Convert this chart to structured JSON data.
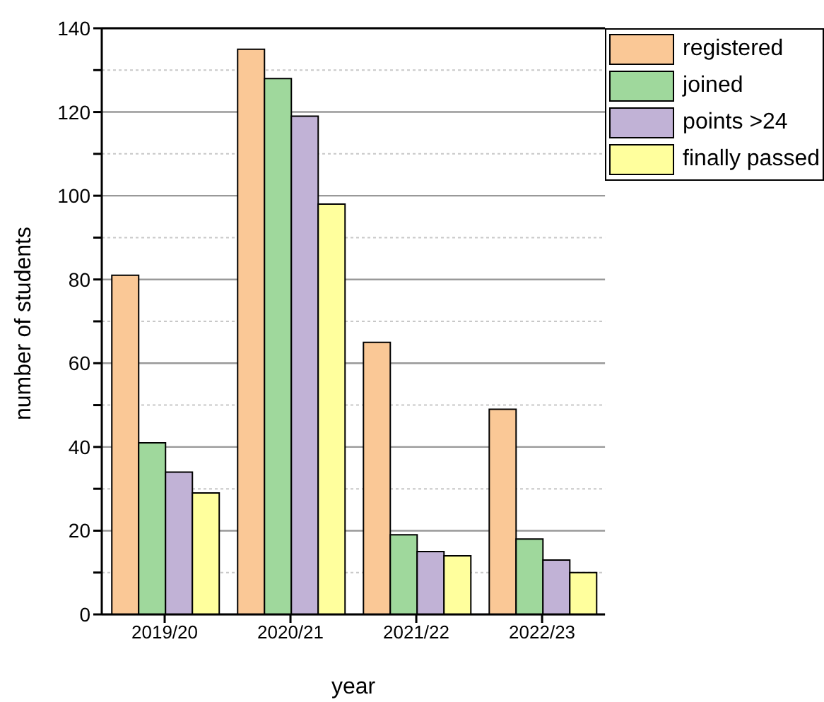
{
  "chart_data": {
    "type": "bar",
    "categories": [
      "2019/20",
      "2020/21",
      "2021/22",
      "2022/23"
    ],
    "series": [
      {
        "name": "registered",
        "color": "#fac896",
        "values": [
          81,
          135,
          65,
          49
        ]
      },
      {
        "name": "joined",
        "color": "#9fd89c",
        "values": [
          41,
          128,
          19,
          18
        ]
      },
      {
        "name": "points >24",
        "color": "#c1b2d6",
        "values": [
          34,
          119,
          15,
          13
        ]
      },
      {
        "name": "finally passed",
        "color": "#ffff9d",
        "values": [
          29,
          98,
          14,
          10
        ]
      }
    ],
    "xlabel": "year",
    "ylabel": "number of students",
    "ylim": [
      0,
      140
    ],
    "yticks": [
      0,
      {
        "value": 10,
        "label": null
      },
      20,
      {
        "value": 30,
        "label": null
      },
      40,
      {
        "value": 50,
        "label": null
      },
      60,
      {
        "value": 70,
        "label": null
      },
      80,
      {
        "value": 90,
        "label": null
      },
      100,
      {
        "value": 110,
        "label": null
      },
      120,
      {
        "value": 130,
        "label": null
      },
      140
    ],
    "grid": true,
    "legend": "top right"
  }
}
